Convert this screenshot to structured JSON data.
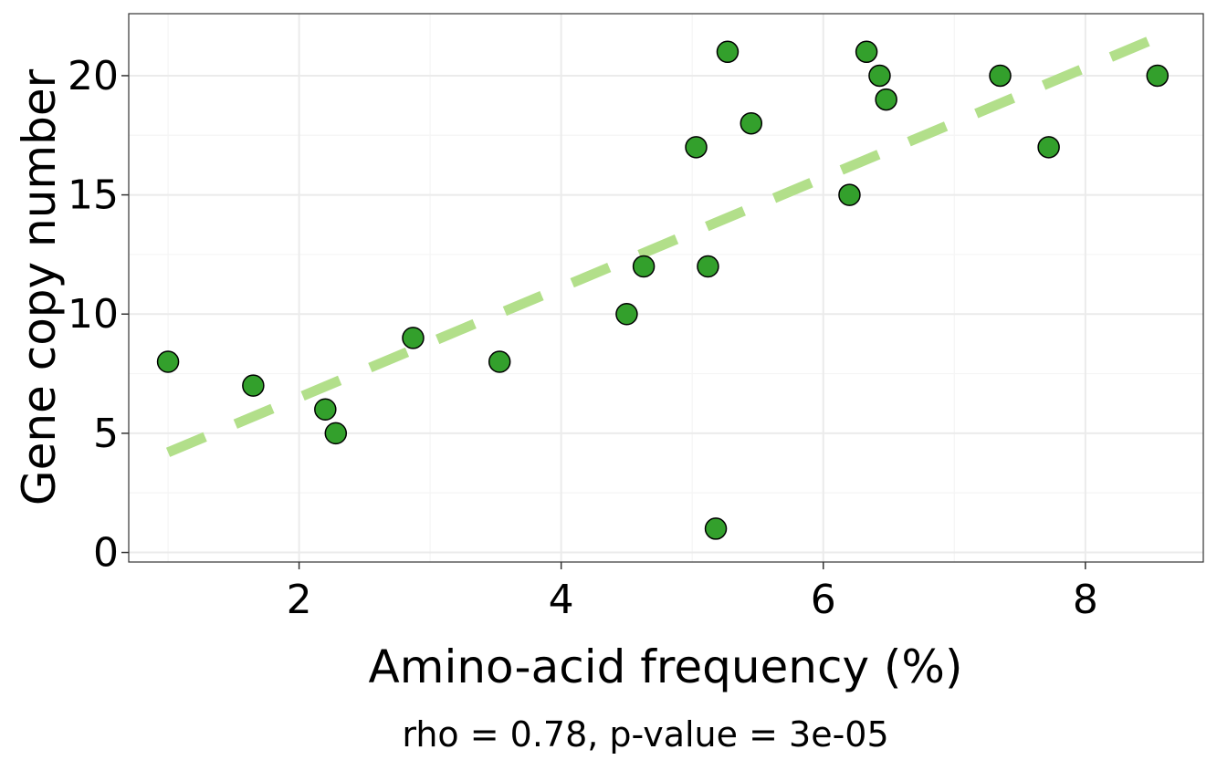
{
  "chart_data": {
    "type": "scatter",
    "xlabel": "Amino-acid frequency (%)",
    "ylabel": "Gene copy number",
    "caption": "rho = 0.78, p-value = 3e-05",
    "xlim": [
      0.7,
      8.9
    ],
    "ylim": [
      -0.4,
      22.6
    ],
    "x_ticks": [
      2,
      4,
      6,
      8
    ],
    "y_ticks": [
      0,
      5,
      10,
      15,
      20
    ],
    "grid": true,
    "points": [
      {
        "x": 1.0,
        "y": 8
      },
      {
        "x": 1.65,
        "y": 7
      },
      {
        "x": 2.2,
        "y": 6
      },
      {
        "x": 2.28,
        "y": 5
      },
      {
        "x": 2.87,
        "y": 9
      },
      {
        "x": 3.53,
        "y": 8
      },
      {
        "x": 4.5,
        "y": 10
      },
      {
        "x": 4.63,
        "y": 12
      },
      {
        "x": 5.03,
        "y": 17
      },
      {
        "x": 5.12,
        "y": 12
      },
      {
        "x": 5.18,
        "y": 1
      },
      {
        "x": 5.27,
        "y": 21
      },
      {
        "x": 5.45,
        "y": 18
      },
      {
        "x": 6.2,
        "y": 15
      },
      {
        "x": 6.33,
        "y": 21
      },
      {
        "x": 6.43,
        "y": 20
      },
      {
        "x": 6.48,
        "y": 19
      },
      {
        "x": 7.35,
        "y": 20
      },
      {
        "x": 7.72,
        "y": 17
      },
      {
        "x": 8.55,
        "y": 20
      }
    ],
    "trend_line": {
      "x": [
        1.0,
        8.55
      ],
      "y": [
        4.2,
        21.6
      ],
      "style": "dashed"
    },
    "colors": {
      "point_fill": "#33a02c",
      "point_stroke": "#000000",
      "trend": "#b2df8a",
      "grid_major": "#ebebeb",
      "grid_minor": "#f5f5f5",
      "panel_border": "#333333"
    }
  }
}
